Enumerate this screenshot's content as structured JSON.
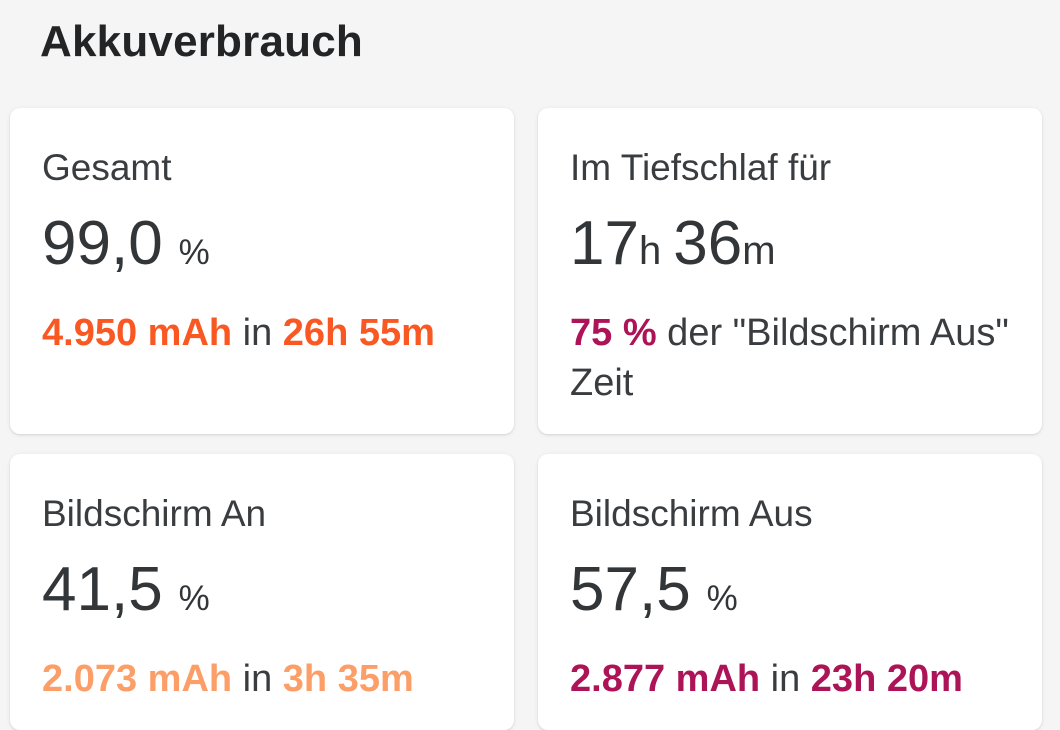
{
  "page": {
    "title": "Akkuverbrauch",
    "background_color": "#F5F5F6",
    "card_color": "#FFFFFF"
  },
  "colors": {
    "total_accent": "#F95822",
    "deep_sleep_accent": "#AD1457",
    "screen_on_accent": "#FC9E67",
    "screen_off_accent": "#AD1457",
    "text_primary": "#323639",
    "text_secondary": "#3A3D40"
  },
  "cards": [
    {
      "id": "total",
      "label": "Gesamt",
      "value": "99,0",
      "unit": "%",
      "accent": "#F95822",
      "stat": {
        "amount": "4.950 mAh",
        "separator": " in ",
        "duration": "26h 55m"
      }
    },
    {
      "id": "deep-sleep",
      "label": "Im Tiefschlaf für",
      "value": {
        "hours": "17",
        "hours_unit": "h",
        "minutes": "36",
        "minutes_unit": "m"
      },
      "accent": "#AD1457",
      "stat": {
        "percent": "75 %",
        "text_line1": " der \"Bildschirm Aus\"",
        "text_line2": "Zeit"
      }
    },
    {
      "id": "screen-on",
      "label": "Bildschirm An",
      "value": "41,5",
      "unit": "%",
      "accent": "#FC9E67",
      "stat": {
        "amount": "2.073 mAh",
        "separator": " in ",
        "duration": "3h 35m"
      }
    },
    {
      "id": "screen-off",
      "label": "Bildschirm Aus",
      "value": "57,5",
      "unit": "%",
      "accent": "#AD1457",
      "stat": {
        "amount": "2.877 mAh",
        "separator": " in ",
        "duration": "23h 20m"
      }
    }
  ]
}
